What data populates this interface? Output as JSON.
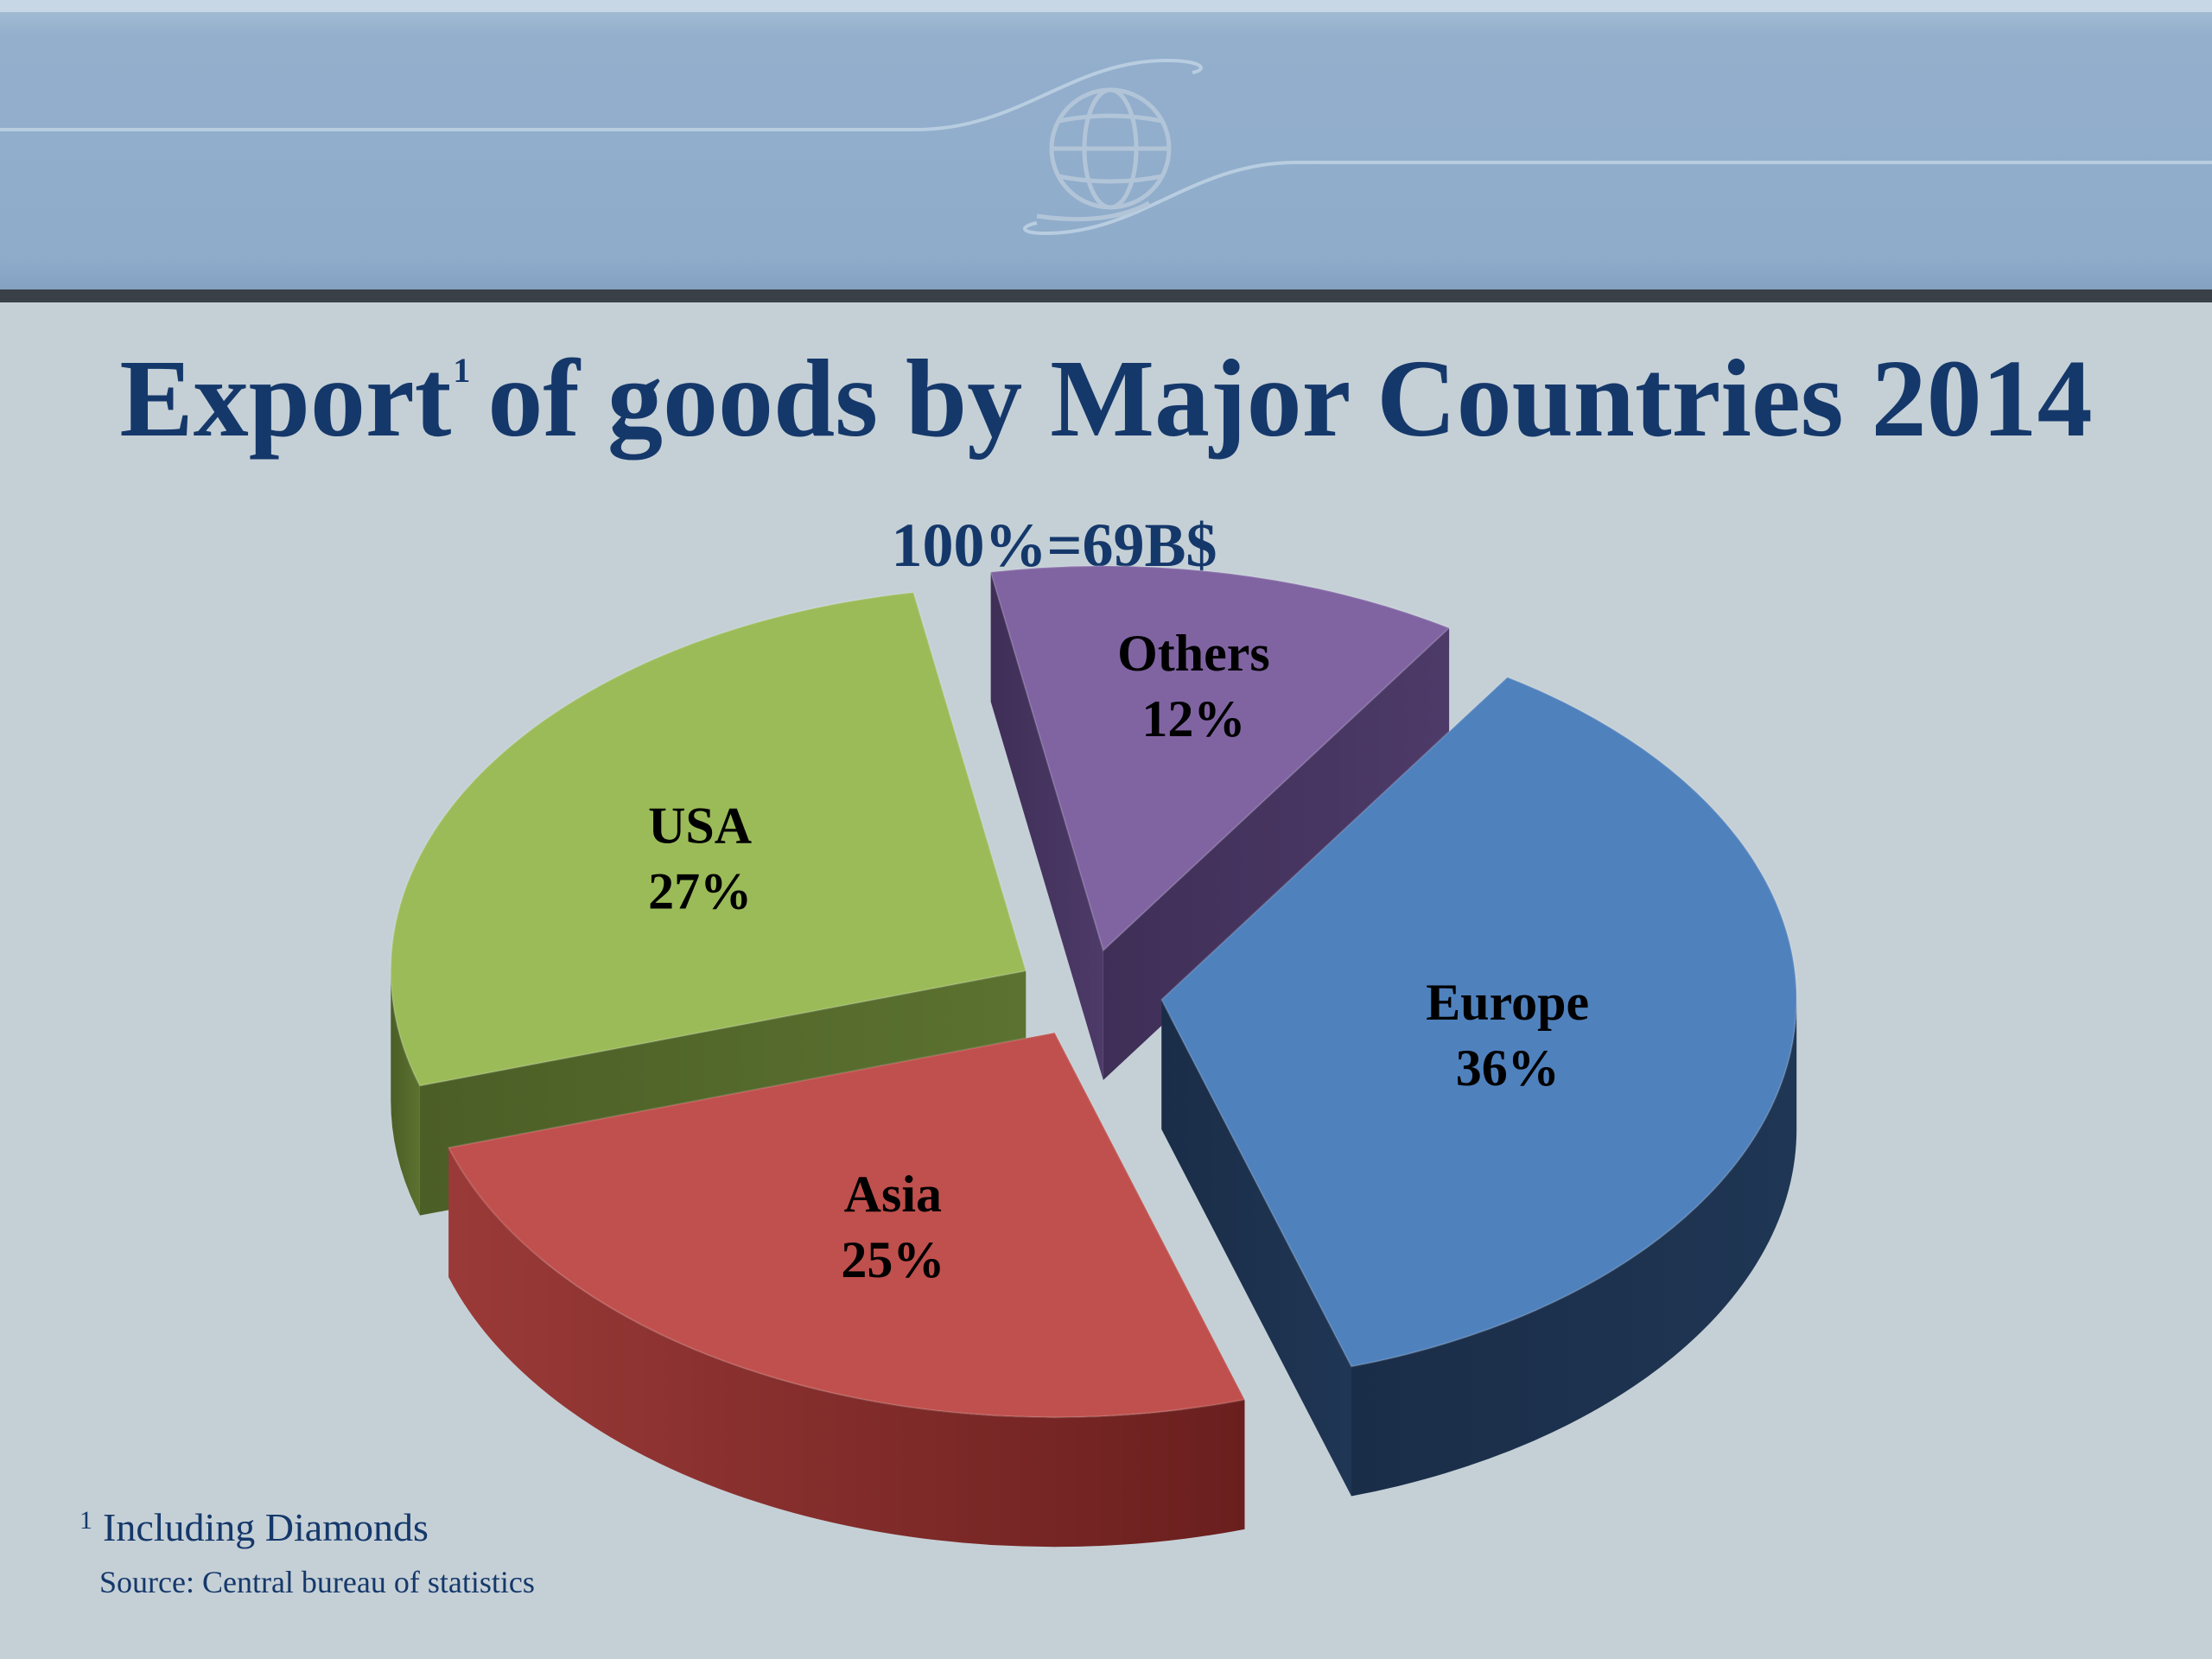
{
  "title": {
    "text": "Export",
    "footnote_marker": "1",
    "rest": "of goods by Major Countries 2014"
  },
  "subtitle": "100%=69B$",
  "footnote": {
    "marker": "1",
    "text": "Including Diamonds"
  },
  "source": "Source: Central bureau of statistics",
  "chart_data": {
    "type": "pie",
    "style": "3d-exploded",
    "title": "Export of goods by Major Countries 2014",
    "subtitle": "100%=69B$",
    "unit": "%",
    "categories": [
      "Europe",
      "Asia",
      "USA",
      "Others"
    ],
    "values": [
      36,
      25,
      27,
      12
    ],
    "value_labels": [
      "36%",
      "25%",
      "27%",
      "12%"
    ],
    "colors": [
      "#4f81bd",
      "#c0504d",
      "#9bbb59",
      "#8064a2"
    ],
    "legend": "none"
  }
}
